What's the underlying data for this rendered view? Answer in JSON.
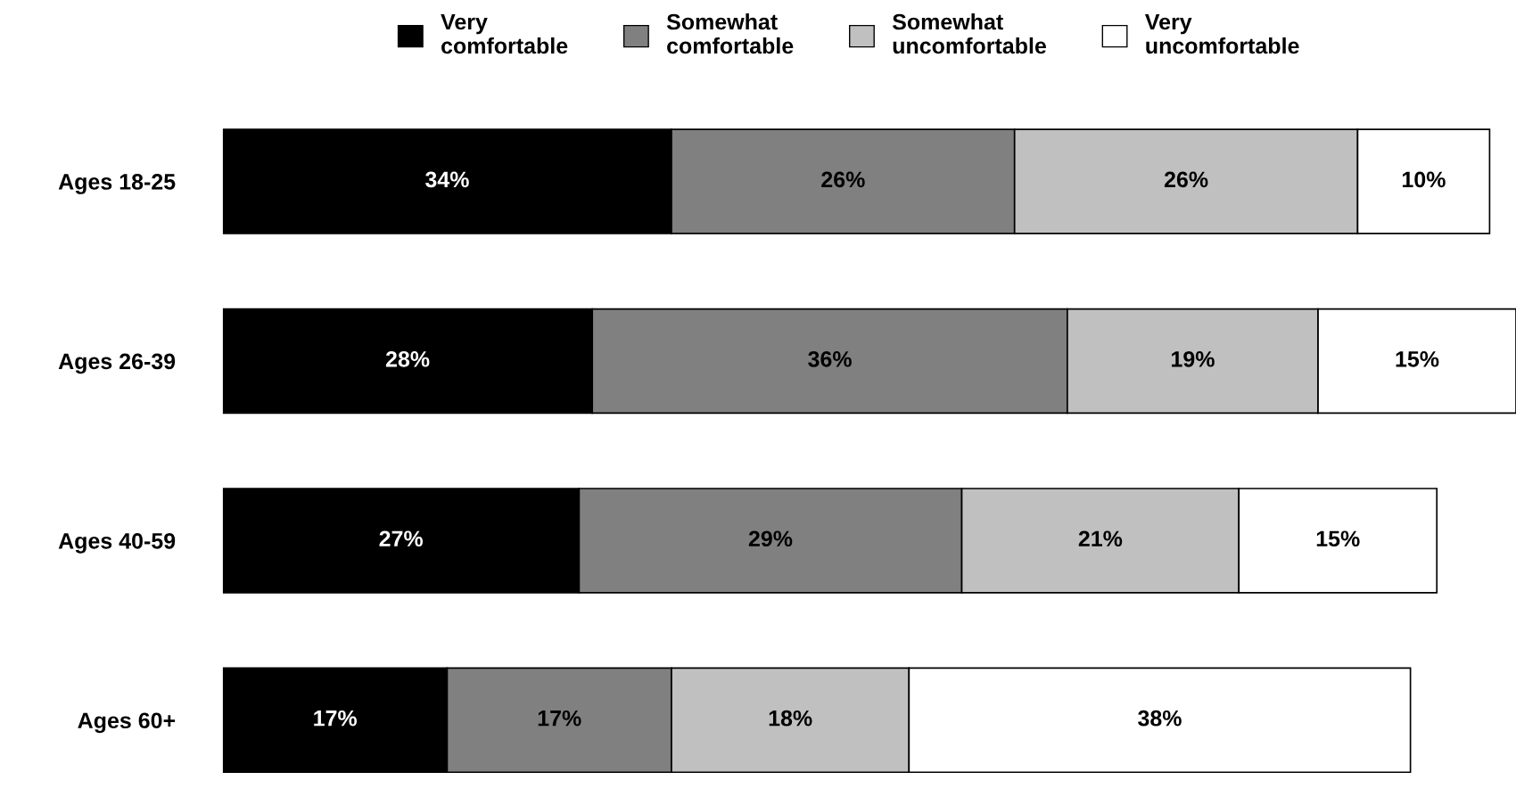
{
  "chart_data": {
    "type": "bar",
    "orientation": "horizontal",
    "stacked": true,
    "categories": [
      "Ages 18-25",
      "Ages 26-39",
      "Ages 40-59",
      "Ages 60+"
    ],
    "xlim": [
      0,
      98
    ],
    "tick_labels": "y",
    "grid": false,
    "legend": "top",
    "series": [
      {
        "name": "Very comfortable",
        "color": "#000000",
        "values": [
          34,
          28,
          27,
          17
        ],
        "value_labels": [
          "34%",
          "28%",
          "27%",
          "17%"
        ]
      },
      {
        "name": "Somewhat comfortable",
        "color": "#808080",
        "values": [
          26,
          36,
          29,
          17
        ],
        "value_labels": [
          "26%",
          "36%",
          "29%",
          "17%"
        ]
      },
      {
        "name": "Somewhat uncomfortable",
        "color": "#c0c0c0",
        "values": [
          26,
          19,
          21,
          18
        ],
        "value_labels": [
          "26%",
          "19%",
          "21%",
          "18%"
        ]
      },
      {
        "name": "Very uncomfortable",
        "color": "#ffffff",
        "values": [
          10,
          15,
          15,
          38
        ],
        "value_labels": [
          "10%",
          "15%",
          "15%",
          "38%"
        ]
      }
    ]
  }
}
